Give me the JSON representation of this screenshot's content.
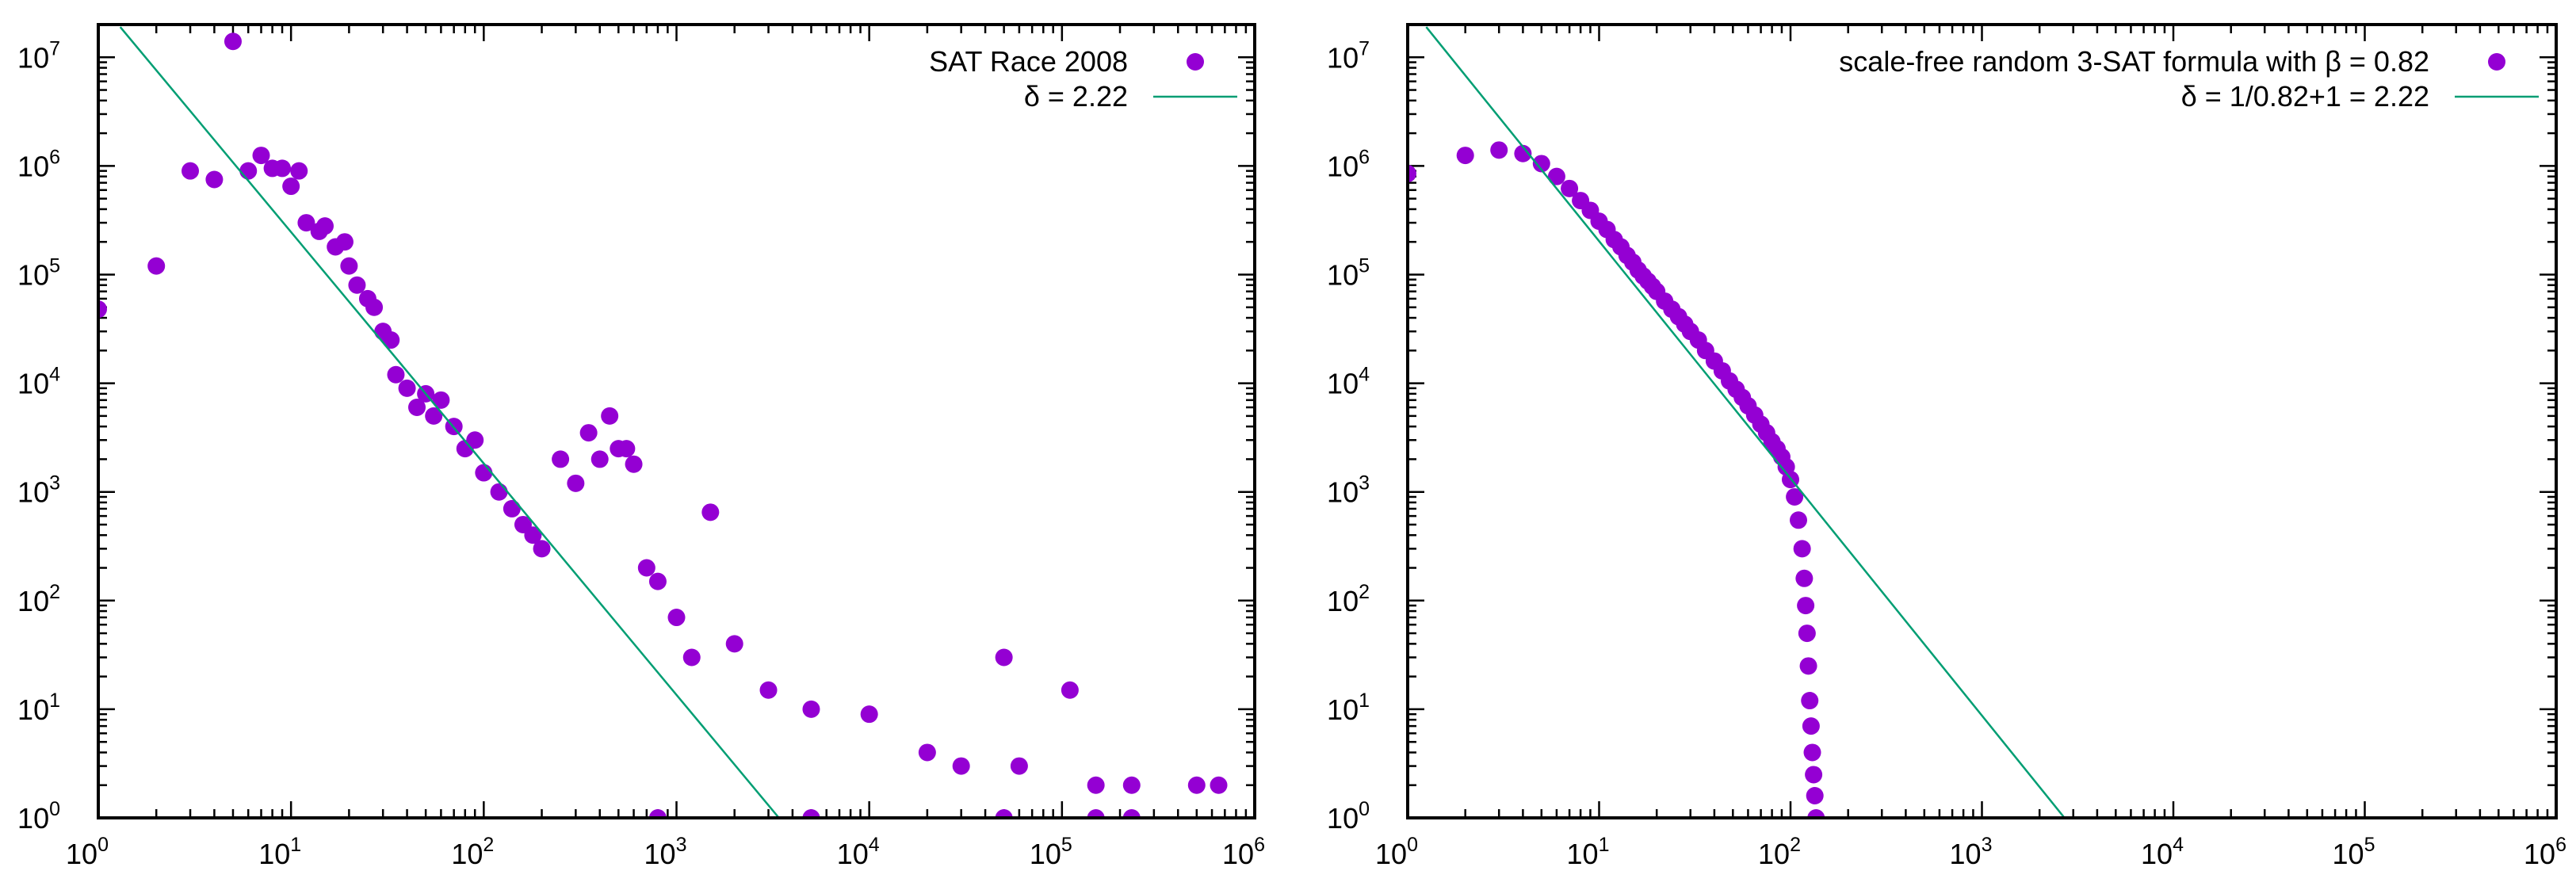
{
  "colors": {
    "points": "#9400d3",
    "fit_line": "#009e73",
    "axes": "#000000",
    "background": "#ffffff"
  },
  "chart_data": [
    {
      "type": "scatter",
      "title": "",
      "xlabel": "",
      "ylabel": "",
      "xscale": "log",
      "yscale": "log",
      "xlim": [
        1,
        1000000
      ],
      "ylim": [
        1,
        20000000
      ],
      "x_ticks": [
        {
          "base": "10",
          "exp": "0"
        },
        {
          "base": "10",
          "exp": "1"
        },
        {
          "base": "10",
          "exp": "2"
        },
        {
          "base": "10",
          "exp": "3"
        },
        {
          "base": "10",
          "exp": "4"
        },
        {
          "base": "10",
          "exp": "5"
        },
        {
          "base": "10",
          "exp": "6"
        }
      ],
      "y_ticks": [
        {
          "base": "10",
          "exp": "0"
        },
        {
          "base": "10",
          "exp": "1"
        },
        {
          "base": "10",
          "exp": "2"
        },
        {
          "base": "10",
          "exp": "3"
        },
        {
          "base": "10",
          "exp": "4"
        },
        {
          "base": "10",
          "exp": "5"
        },
        {
          "base": "10",
          "exp": "6"
        },
        {
          "base": "10",
          "exp": "7"
        }
      ],
      "grid": false,
      "legend_position": "top-right",
      "legend": [
        {
          "label": "SAT Race 2008",
          "marker": "point"
        },
        {
          "label": "δ = 2.22",
          "marker": "line"
        }
      ],
      "series": [
        {
          "name": "SAT Race 2008",
          "points": [
            [
              1,
              48000
            ],
            [
              2,
              120000
            ],
            [
              3,
              900000
            ],
            [
              4,
              750000
            ],
            [
              5,
              14000000
            ],
            [
              6,
              900000
            ],
            [
              7,
              1250000
            ],
            [
              8,
              950000
            ],
            [
              9,
              950000
            ],
            [
              10,
              650000
            ],
            [
              11,
              900000
            ],
            [
              12,
              300000
            ],
            [
              14,
              250000
            ],
            [
              15,
              280000
            ],
            [
              17,
              180000
            ],
            [
              19,
              200000
            ],
            [
              20,
              120000
            ],
            [
              22,
              80000
            ],
            [
              25,
              60000
            ],
            [
              27,
              50000
            ],
            [
              30,
              30000
            ],
            [
              33,
              25000
            ],
            [
              35,
              12000
            ],
            [
              40,
              9000
            ],
            [
              45,
              6000
            ],
            [
              50,
              8000
            ],
            [
              55,
              5000
            ],
            [
              60,
              7000
            ],
            [
              70,
              4000
            ],
            [
              80,
              2500
            ],
            [
              90,
              3000
            ],
            [
              100,
              1500
            ],
            [
              120,
              1000
            ],
            [
              140,
              700
            ],
            [
              160,
              500
            ],
            [
              180,
              400
            ],
            [
              200,
              300
            ],
            [
              250,
              2000
            ],
            [
              300,
              1200
            ],
            [
              350,
              3500
            ],
            [
              400,
              2000
            ],
            [
              450,
              5000
            ],
            [
              500,
              2500
            ],
            [
              550,
              2500
            ],
            [
              600,
              1800
            ],
            [
              700,
              200
            ],
            [
              800,
              150
            ],
            [
              1000,
              70
            ],
            [
              1200,
              30
            ],
            [
              1500,
              650
            ],
            [
              2000,
              40
            ],
            [
              3000,
              15
            ],
            [
              5000,
              10
            ],
            [
              10000,
              9
            ],
            [
              20000,
              4
            ],
            [
              30000,
              3
            ],
            [
              50000,
              30
            ],
            [
              60000,
              3
            ],
            [
              110000,
              15
            ],
            [
              150000,
              2
            ],
            [
              230000,
              2
            ],
            [
              500000,
              2
            ],
            [
              650000,
              2
            ],
            [
              800,
              1
            ],
            [
              5000,
              1
            ],
            [
              50000,
              1
            ],
            [
              150000,
              1
            ],
            [
              230000,
              1
            ]
          ]
        },
        {
          "name": "δ = 2.22",
          "kind": "line",
          "points": [
            [
              1.3,
              19000000
            ],
            [
              3400,
              1
            ]
          ]
        }
      ]
    },
    {
      "type": "scatter",
      "title": "",
      "xlabel": "",
      "ylabel": "",
      "xscale": "log",
      "yscale": "log",
      "xlim": [
        1,
        1000000
      ],
      "ylim": [
        1,
        20000000
      ],
      "x_ticks": [
        {
          "base": "10",
          "exp": "0"
        },
        {
          "base": "10",
          "exp": "1"
        },
        {
          "base": "10",
          "exp": "2"
        },
        {
          "base": "10",
          "exp": "3"
        },
        {
          "base": "10",
          "exp": "4"
        },
        {
          "base": "10",
          "exp": "5"
        },
        {
          "base": "10",
          "exp": "6"
        }
      ],
      "y_ticks": [
        {
          "base": "10",
          "exp": "0"
        },
        {
          "base": "10",
          "exp": "1"
        },
        {
          "base": "10",
          "exp": "2"
        },
        {
          "base": "10",
          "exp": "3"
        },
        {
          "base": "10",
          "exp": "4"
        },
        {
          "base": "10",
          "exp": "5"
        },
        {
          "base": "10",
          "exp": "6"
        },
        {
          "base": "10",
          "exp": "7"
        }
      ],
      "grid": false,
      "legend_position": "top-right",
      "legend": [
        {
          "label": "scale-free random 3-SAT formula with β = 0.82",
          "marker": "point"
        },
        {
          "label": "δ = 1/0.82+1 = 2.22",
          "marker": "line"
        }
      ],
      "series": [
        {
          "name": "scale-free random 3-SAT formula with β = 0.82",
          "points": [
            [
              1,
              850000
            ],
            [
              2,
              1250000
            ],
            [
              3,
              1400000
            ],
            [
              4,
              1300000
            ],
            [
              5,
              1050000
            ],
            [
              6,
              800000
            ],
            [
              7,
              620000
            ],
            [
              8,
              480000
            ],
            [
              9,
              390000
            ],
            [
              10,
              310000
            ],
            [
              11,
              260000
            ],
            [
              12,
              210000
            ],
            [
              13,
              180000
            ],
            [
              14,
              150000
            ],
            [
              15,
              130000
            ],
            [
              16,
              110000
            ],
            [
              17,
              97000
            ],
            [
              18,
              87000
            ],
            [
              19,
              78000
            ],
            [
              20,
              70000
            ],
            [
              22,
              57000
            ],
            [
              24,
              48000
            ],
            [
              26,
              41000
            ],
            [
              28,
              35000
            ],
            [
              30,
              30000
            ],
            [
              33,
              25000
            ],
            [
              36,
              20000
            ],
            [
              40,
              16000
            ],
            [
              44,
              13000
            ],
            [
              48,
              10500
            ],
            [
              52,
              8800
            ],
            [
              56,
              7400
            ],
            [
              60,
              6200
            ],
            [
              65,
              5100
            ],
            [
              70,
              4200
            ],
            [
              75,
              3500
            ],
            [
              80,
              2900
            ],
            [
              85,
              2500
            ],
            [
              90,
              2100
            ],
            [
              95,
              1700
            ],
            [
              100,
              1300
            ],
            [
              105,
              900
            ],
            [
              110,
              550
            ],
            [
              115,
              300
            ],
            [
              118,
              160
            ],
            [
              120,
              90
            ],
            [
              122,
              50
            ],
            [
              124,
              25
            ],
            [
              126,
              12
            ],
            [
              128,
              7
            ],
            [
              130,
              4
            ],
            [
              132,
              2.5
            ],
            [
              134,
              1.6
            ],
            [
              136,
              1
            ]
          ]
        },
        {
          "name": "δ = 1/0.82+1 = 2.22",
          "kind": "line",
          "points": [
            [
              1.25,
              19000000
            ],
            [
              2700,
              1
            ]
          ]
        }
      ]
    }
  ]
}
